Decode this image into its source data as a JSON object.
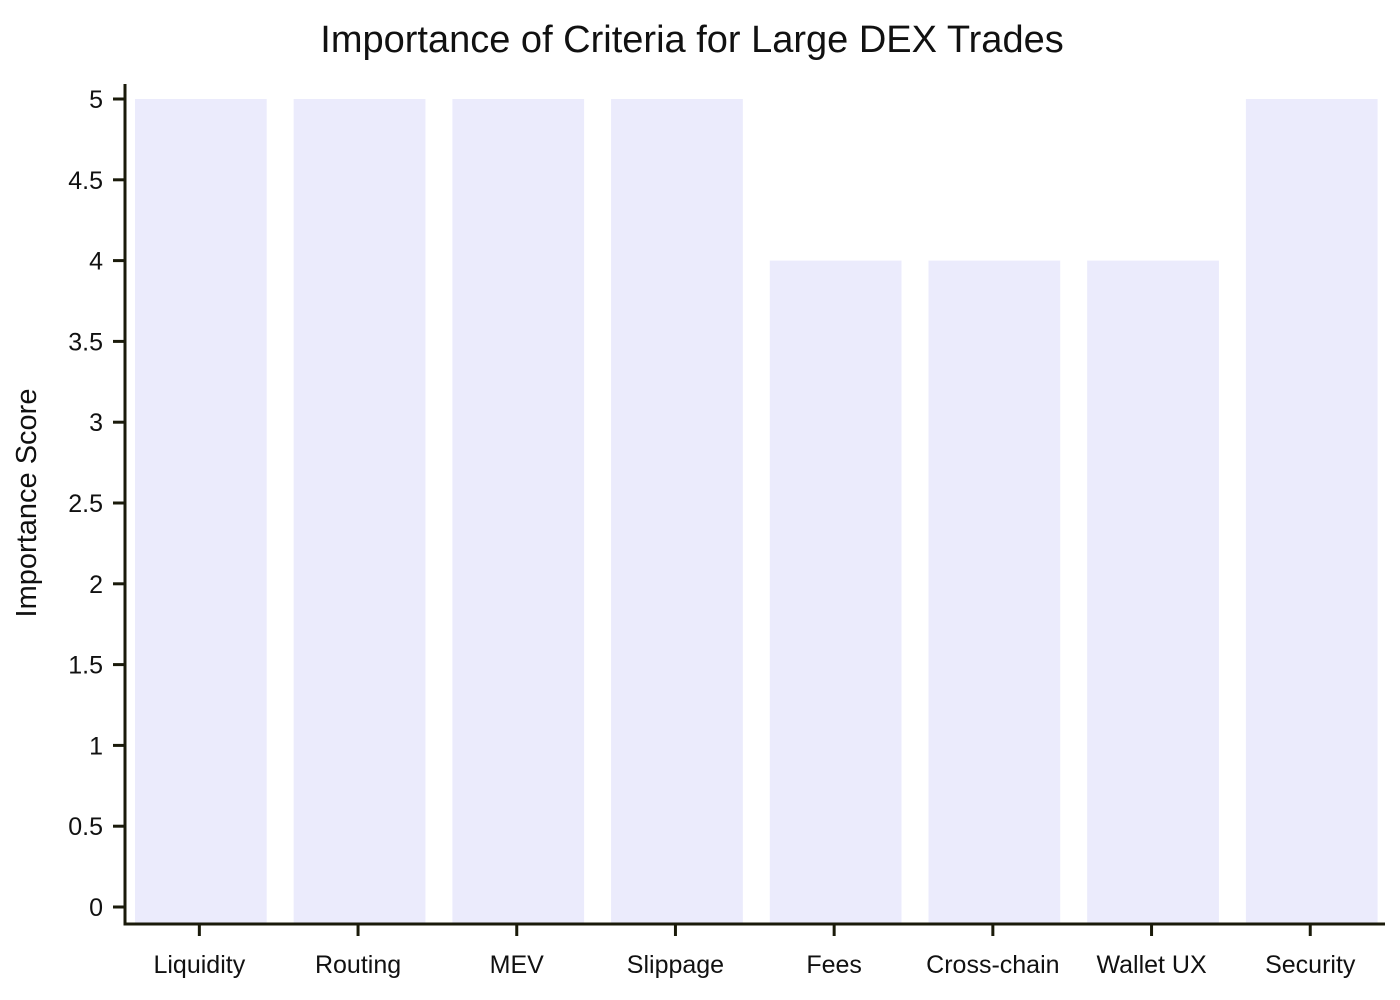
{
  "chart_data": {
    "type": "bar",
    "title": "Importance of Criteria for Large DEX Trades",
    "xlabel": "",
    "ylabel": "Importance Score",
    "categories": [
      "Liquidity",
      "Routing",
      "MEV",
      "Slippage",
      "Fees",
      "Cross-chain",
      "Wallet UX",
      "Security"
    ],
    "values": [
      5,
      5,
      5,
      5,
      4,
      4,
      4,
      5
    ],
    "ylim": [
      0,
      5
    ],
    "yticks": [
      "0",
      "0.5",
      "1",
      "1.5",
      "2",
      "2.5",
      "3",
      "3.5",
      "4",
      "4.5",
      "5"
    ],
    "bar_color": "#ebebfc",
    "axis_color": "#1a1a0a",
    "grid": false,
    "legend": "none"
  }
}
